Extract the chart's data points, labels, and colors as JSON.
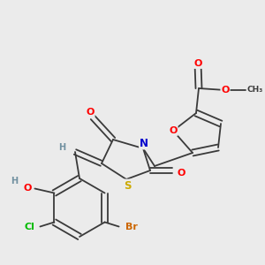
{
  "background_color": "#ebebeb",
  "bond_color": "#3a3a3a",
  "atom_colors": {
    "O": "#ff0000",
    "N": "#0000cc",
    "S": "#ccaa00",
    "Cl": "#00bb00",
    "Br": "#cc6600",
    "C": "#3a3a3a",
    "H": "#7090a0"
  },
  "font_size": 7.5,
  "figsize": [
    3.0,
    3.0
  ],
  "dpi": 100
}
